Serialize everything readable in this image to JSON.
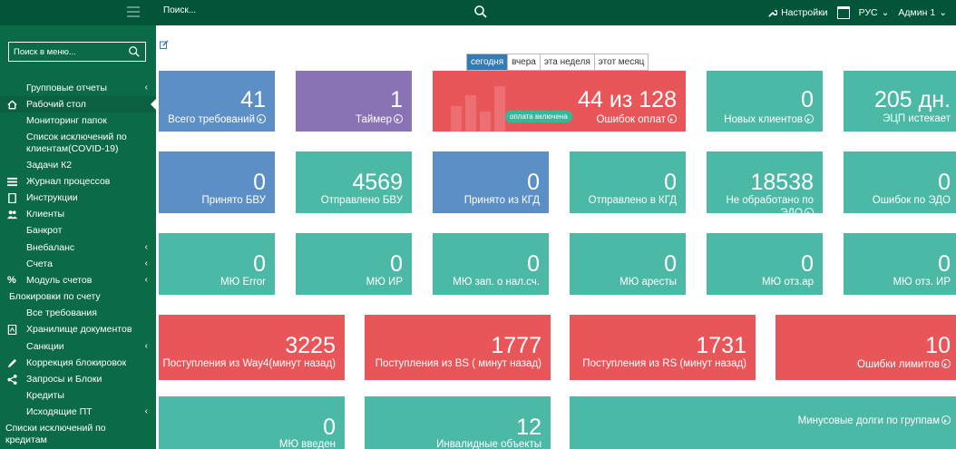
{
  "topbar": {
    "search_placeholder": "Поиск...",
    "settings_label": "Настройки",
    "lang_label": "РУС",
    "user_label": "Админ 1"
  },
  "sidebar": {
    "search_placeholder": "Поиск в меню...",
    "items": [
      {
        "label": "Групповые отчеты",
        "chevron": "‹"
      },
      {
        "label": "Рабочий стол",
        "icon": "home-icon"
      },
      {
        "label": "Мониторинг папок"
      },
      {
        "label": "Список исключений по клиентам(COVID-19)"
      },
      {
        "label": "Задачи К2"
      },
      {
        "label": "Журнал процессов",
        "icon": "list-icon"
      },
      {
        "label": "Инструкции",
        "icon": "book-icon"
      },
      {
        "label": "Клиенты",
        "icon": "users-icon"
      },
      {
        "label": "Банкрот"
      },
      {
        "label": "Внебаланс",
        "chevron": "‹"
      },
      {
        "label": "Счета",
        "chevron": "‹"
      },
      {
        "label": "Модуль счетов",
        "icon": "percent-icon",
        "chevron": "‹"
      },
      {
        "label": "Блокировки по счету"
      },
      {
        "label": "Все требования"
      },
      {
        "label": "Хранилище документов",
        "icon": "file-icon"
      },
      {
        "label": "Санкции",
        "chevron": "‹"
      },
      {
        "label": "Коррекция блокировок",
        "icon": "pencil-icon"
      },
      {
        "label": "Запросы и Блоки",
        "icon": "share-icon"
      },
      {
        "label": "Кредиты"
      },
      {
        "label": "Исходящие ПТ",
        "chevron": "‹"
      },
      {
        "label": "Списки исключений по кредитам"
      }
    ]
  },
  "periods": [
    "сегодня",
    "вчера",
    "эта неделя",
    "этот месяц"
  ],
  "tiles": {
    "row1": [
      {
        "num": "41",
        "label": "Всего требований"
      },
      {
        "num": "1",
        "label": "Таймер"
      },
      {
        "num": "44 из 128",
        "label": "Ошибок оплат",
        "badge": "оплата включена"
      },
      {
        "num": "0",
        "label": "Новых клиентов"
      },
      {
        "num": "205 дн.",
        "label": "ЭЦП истекает"
      }
    ],
    "row2": [
      {
        "num": "0",
        "label": "Принято БВУ"
      },
      {
        "num": "4569",
        "label": "Отправлено БВУ"
      },
      {
        "num": "0",
        "label": "Принято из КГД"
      },
      {
        "num": "0",
        "label": "Отправлено в КГД"
      },
      {
        "num": "18538",
        "label": "Не обработано по ЭДО"
      },
      {
        "num": "0",
        "label": "Ошибок по ЭДО"
      }
    ],
    "row3": [
      {
        "num": "0",
        "label": "МЮ Error"
      },
      {
        "num": "0",
        "label": "МЮ ИР"
      },
      {
        "num": "0",
        "label": "МЮ зап. о нал.сч."
      },
      {
        "num": "0",
        "label": "МЮ аресты"
      },
      {
        "num": "0",
        "label": "МЮ отз.ар"
      },
      {
        "num": "0",
        "label": "МЮ отз. ИР"
      }
    ],
    "row4": [
      {
        "num": "3225",
        "label": "Поступления из Way4(минут назад)"
      },
      {
        "num": "1777",
        "label": "Поступления из BS ( минут назад)"
      },
      {
        "num": "1731",
        "label": "Поступления из RS (минут назад)"
      },
      {
        "num": "10",
        "label": "Ошибки лимитов"
      }
    ],
    "row5": [
      {
        "num": "0",
        "label": "МЮ введен"
      },
      {
        "num": "12",
        "label": "Инвалидные объекты"
      },
      {
        "label": "Минусовые долги по группам"
      }
    ]
  }
}
